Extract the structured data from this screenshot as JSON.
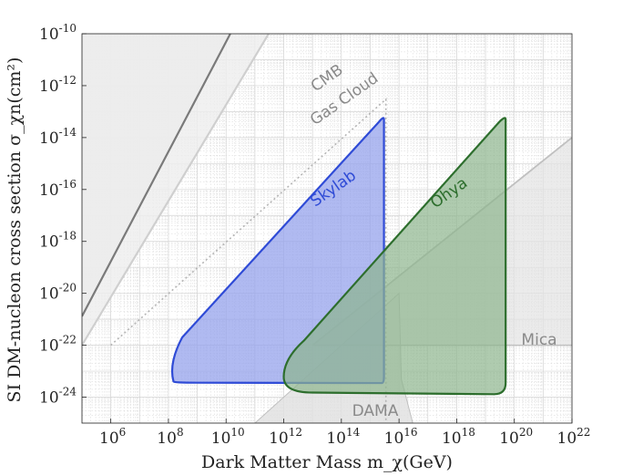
{
  "chart_data": {
    "type": "area",
    "xlabel": "Dark Matter Mass m_χ(GeV)",
    "ylabel": "SI DM-nucleon cross section σ_χn(cm²)",
    "x_scale": "log",
    "y_scale": "log",
    "xlim": [
      100000,
      10000000000000000000000
    ],
    "ylim": [
      1e-25,
      1e-10
    ],
    "grid": true,
    "x_ticks": [
      {
        "value": 1000000,
        "label": "10^6"
      },
      {
        "value": 100000000,
        "label": "10^8"
      },
      {
        "value": 10000000000,
        "label": "10^10"
      },
      {
        "value": 1000000000000,
        "label": "10^12"
      },
      {
        "value": 100000000000000,
        "label": "10^14"
      },
      {
        "value": 10000000000000000,
        "label": "10^16"
      },
      {
        "value": 1000000000000000000,
        "label": "10^18"
      },
      {
        "value": 100000000000000000000,
        "label": "10^20"
      },
      {
        "value": 10000000000000000000000,
        "label": "10^22"
      }
    ],
    "y_ticks": [
      {
        "value": 1e-24,
        "label": "10^-24"
      },
      {
        "value": 1e-22,
        "label": "10^-22"
      },
      {
        "value": 1e-20,
        "label": "10^-20"
      },
      {
        "value": 1e-18,
        "label": "10^-18"
      },
      {
        "value": 1e-16,
        "label": "10^-16"
      },
      {
        "value": 1e-14,
        "label": "10^-14"
      },
      {
        "value": 1e-12,
        "label": "10^-12"
      },
      {
        "value": 1e-10,
        "label": "10^-10"
      }
    ],
    "series": [
      {
        "name": "CMB",
        "kind": "excluded-region",
        "color": "#7a7a7a",
        "fill": "#e6e6e6",
        "boundary": [
          [
            100000,
            1.3e-21
          ],
          [
            14000000000.0,
            1e-10
          ]
        ]
      },
      {
        "name": "Gas Cloud",
        "kind": "excluded-region",
        "color": "#cfcfcf",
        "fill": "#eeeeee",
        "boundary": [
          [
            100000,
            1e-22
          ],
          [
            300000000000.0,
            1e-10
          ]
        ]
      },
      {
        "name": "",
        "kind": "dotted-line",
        "color": "#b4b4b4",
        "boundary": [
          [
            1000000,
            1e-22
          ],
          [
            3500000000000000.0,
            3e-13
          ],
          [
            3500000000000000.0,
            1e-25
          ]
        ]
      },
      {
        "name": "Skylab",
        "kind": "excluded-region",
        "color": "#2f4bd6",
        "fill": "#95a3ec",
        "boundary": [
          [
            100000000.0,
            1e-23
          ],
          [
            1000000000.0,
            3.6e-24
          ],
          [
            10000000000000.0,
            3.5e-24
          ],
          [
            3000000000000000.0,
            3.5e-24
          ],
          [
            3000000000000000.0,
            5e-14
          ],
          [
            200000000.0,
            4e-22
          ],
          [
            100000000.0,
            1e-23
          ]
        ]
      },
      {
        "name": "Ohya",
        "kind": "excluded-region",
        "color": "#2d6e2d",
        "fill": "#8db58d",
        "boundary": [
          [
            1000000000000.0,
            1e-23
          ],
          [
            10000000000000.0,
            1.5e-24
          ],
          [
            1e+18,
            1.3e-24
          ],
          [
            5e+19,
            3.5e-24
          ],
          [
            5e+19,
            5e-14
          ],
          [
            2000000000000.0,
            2e-22
          ],
          [
            1000000000000.0,
            1e-23
          ]
        ]
      },
      {
        "name": "Mica",
        "kind": "excluded-region",
        "color": "#c0c0c0",
        "fill": "#e3e3e3",
        "boundary": [
          [
            10000000000000.0,
            1e-22
          ],
          [
            1e+22,
            1e-22
          ],
          [
            1e+22,
            1e-14
          ],
          [
            10000000000000.0,
            1e-22
          ]
        ]
      },
      {
        "name": "DAMA",
        "kind": "excluded-region",
        "color": "#c0c0c0",
        "fill": "#e0e0e0",
        "boundary": [
          [
            100000000000.0,
            1e-25
          ],
          [
            1e+16,
            1e-20
          ],
          [
            1.2e+16,
            5e-24
          ],
          [
            3e+16,
            1e-25
          ]
        ]
      }
    ]
  },
  "colors": {
    "grid": "#d4d4d4",
    "plot_bg": "#ffffff",
    "axis": "#222222"
  }
}
